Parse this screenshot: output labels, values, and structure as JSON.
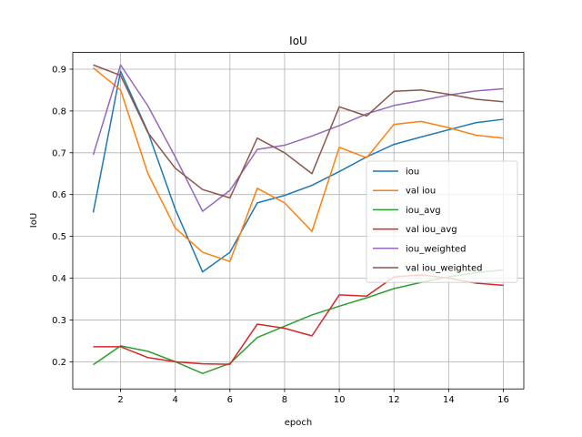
{
  "chart_data": {
    "type": "line",
    "title": "IoU",
    "xlabel": "epoch",
    "ylabel": "IoU",
    "xlim": [
      0.25,
      16.75
    ],
    "ylim": [
      0.135,
      0.94
    ],
    "xticks": [
      2,
      4,
      6,
      8,
      10,
      12,
      14,
      16
    ],
    "yticks": [
      0.2,
      0.3,
      0.4,
      0.5,
      0.6,
      0.7,
      0.8,
      0.9
    ],
    "grid": true,
    "legend_position": "center-right",
    "x": [
      1,
      2,
      3,
      4,
      5,
      6,
      7,
      8,
      9,
      10,
      11,
      12,
      13,
      14,
      15,
      16
    ],
    "series": [
      {
        "name": "iou",
        "color": "#1f77b4",
        "values": [
          0.557,
          0.895,
          0.75,
          0.565,
          0.415,
          0.462,
          0.58,
          0.598,
          0.622,
          0.655,
          0.69,
          0.72,
          0.738,
          0.755,
          0.772,
          0.78
        ]
      },
      {
        "name": "val iou",
        "color": "#ff7f0e",
        "values": [
          0.903,
          0.85,
          0.65,
          0.52,
          0.462,
          0.44,
          0.615,
          0.58,
          0.512,
          0.713,
          0.688,
          0.768,
          0.775,
          0.76,
          0.742,
          0.735
        ]
      },
      {
        "name": "iou_avg",
        "color": "#2ca02c",
        "values": [
          0.193,
          0.238,
          0.225,
          0.2,
          0.172,
          0.196,
          0.258,
          0.285,
          0.312,
          0.333,
          0.353,
          0.375,
          0.39,
          0.403,
          0.413,
          0.42
        ]
      },
      {
        "name": "val iou_avg",
        "color": "#d62728",
        "values": [
          0.236,
          0.236,
          0.21,
          0.2,
          0.195,
          0.194,
          0.29,
          0.28,
          0.262,
          0.36,
          0.357,
          0.403,
          0.408,
          0.4,
          0.388,
          0.383
        ]
      },
      {
        "name": "iou_weighted",
        "color": "#9467bd",
        "values": [
          0.695,
          0.91,
          0.812,
          0.69,
          0.56,
          0.61,
          0.708,
          0.718,
          0.74,
          0.765,
          0.793,
          0.813,
          0.825,
          0.838,
          0.848,
          0.853
        ]
      },
      {
        "name": "val iou_weighted",
        "color": "#8c564b",
        "values": [
          0.91,
          0.885,
          0.748,
          0.663,
          0.612,
          0.592,
          0.735,
          0.7,
          0.65,
          0.81,
          0.788,
          0.847,
          0.85,
          0.84,
          0.828,
          0.822
        ]
      }
    ]
  }
}
